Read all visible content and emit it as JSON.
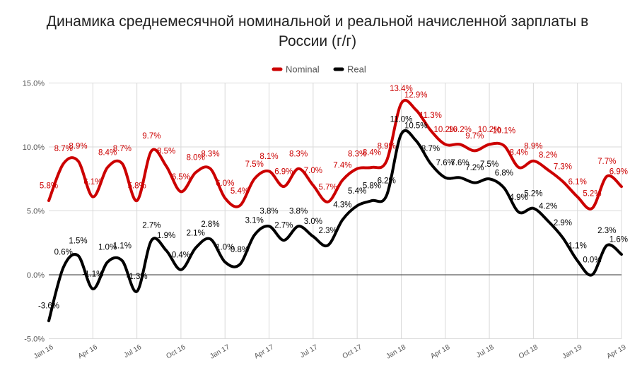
{
  "chart_data": {
    "type": "line",
    "title": "Динамика среднемесячной номинальной и реальной начисленной зарплаты в России (г/г)",
    "x": [
      "2016-01",
      "2016-02",
      "2016-03",
      "2016-04",
      "2016-05",
      "2016-06",
      "2016-07",
      "2016-08",
      "2016-09",
      "2016-10",
      "2016-11",
      "2016-12",
      "2017-01",
      "2017-02",
      "2017-03",
      "2017-04",
      "2017-05",
      "2017-06",
      "2017-07",
      "2017-08",
      "2017-09",
      "2017-10",
      "2017-11",
      "2017-12",
      "2018-01",
      "2018-02",
      "2018-03",
      "2018-04",
      "2018-05",
      "2018-06",
      "2018-07",
      "2018-08",
      "2018-09",
      "2018-10",
      "2018-11",
      "2018-12",
      "2019-01",
      "2019-02",
      "2019-03",
      "2019-04"
    ],
    "xtick_values": [
      "2016-01",
      "2016-04",
      "2016-07",
      "2016-10",
      "2017-01",
      "2017-04",
      "2017-07",
      "2017-10",
      "2018-01",
      "2018-04",
      "2018-07",
      "2018-10",
      "2019-01",
      "2019-04"
    ],
    "xtick_labels": [
      "Jan 16",
      "Apr 16",
      "Jul 16",
      "Oct 16",
      "Jan 17",
      "Apr 17",
      "Jul 17",
      "Oct 17",
      "Jan 18",
      "Apr 18",
      "Jul 18",
      "Oct 18",
      "Jan 19",
      "Apr 19"
    ],
    "ylim": [
      -5,
      15
    ],
    "yticks": [
      -5,
      0,
      5,
      10,
      15
    ],
    "ytick_labels": [
      "-5.0%",
      "0.0%",
      "5.0%",
      "10.0%",
      "15.0%"
    ],
    "series": [
      {
        "name": "Nominal",
        "color": "#cc0000",
        "values": [
          5.8,
          8.7,
          8.9,
          6.1,
          8.4,
          8.7,
          5.8,
          9.7,
          8.5,
          6.5,
          8.0,
          8.3,
          6.0,
          5.4,
          7.5,
          8.1,
          6.9,
          8.3,
          7.0,
          5.7,
          7.4,
          8.3,
          8.4,
          8.9,
          13.4,
          12.9,
          11.3,
          10.2,
          10.2,
          9.7,
          10.2,
          10.1,
          8.4,
          8.9,
          8.2,
          7.3,
          6.1,
          5.2,
          7.7,
          6.9
        ]
      },
      {
        "name": "Real",
        "color": "#000000",
        "values": [
          -3.6,
          0.6,
          1.5,
          -1.1,
          1.0,
          1.1,
          -1.3,
          2.7,
          1.9,
          0.4,
          2.1,
          2.8,
          1.0,
          0.8,
          3.1,
          3.8,
          2.7,
          3.8,
          3.0,
          2.3,
          4.3,
          5.4,
          5.8,
          6.2,
          11.0,
          10.5,
          8.7,
          7.6,
          7.6,
          7.2,
          7.5,
          6.8,
          4.9,
          5.2,
          4.2,
          2.9,
          1.1,
          0.0,
          2.3,
          1.6
        ]
      }
    ],
    "smooth": true,
    "data_labels": true,
    "grid": true,
    "legend": "top"
  }
}
